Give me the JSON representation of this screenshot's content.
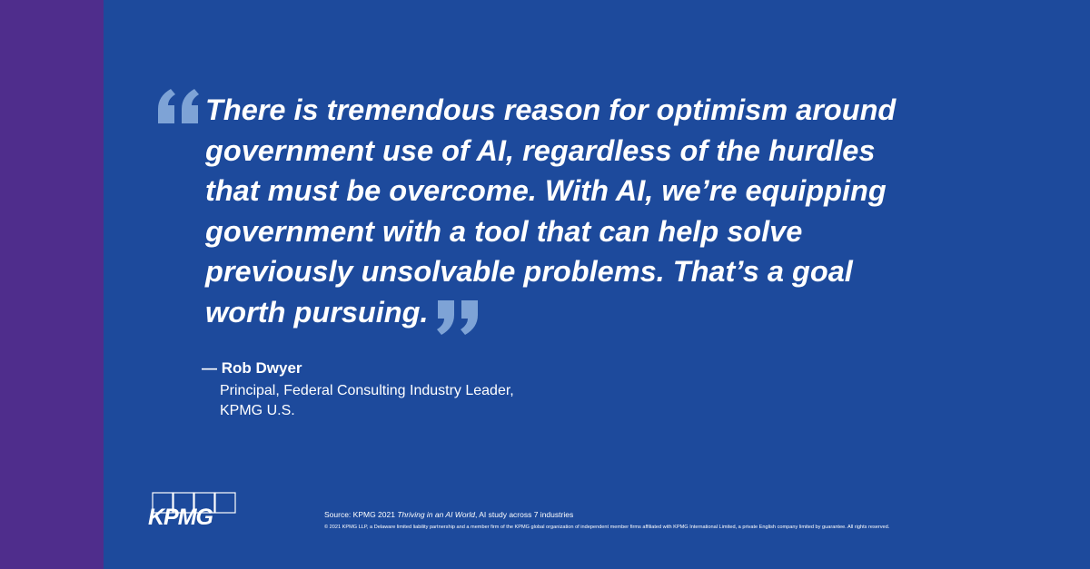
{
  "quote": {
    "lines": [
      "There is tremendous reason for optimism around",
      "government use of AI, regardless of the hurdles",
      "that must be overcome. With AI, we’re equipping",
      "government with a tool that can help solve",
      "previously unsolvable problems. That’s a goal",
      "worth pursuing."
    ]
  },
  "attribution": {
    "name": "— Rob Dwyer",
    "role_lines": [
      "Principal, Federal Consulting Industry Leader,",
      "KPMG U.S."
    ]
  },
  "footer": {
    "logo": "KPMG",
    "source": {
      "prefix": "Source: KPMG 2021 ",
      "title": "Thriving in an AI World",
      "suffix": ", AI study across 7 industries"
    },
    "copyright": "© 2021 KPMG LLP, a Delaware limited liability partnership and a member firm of the KPMG global organization of independent member firms affiliated with KPMG International Limited, a private English company limited by guarantee. All rights reserved."
  }
}
